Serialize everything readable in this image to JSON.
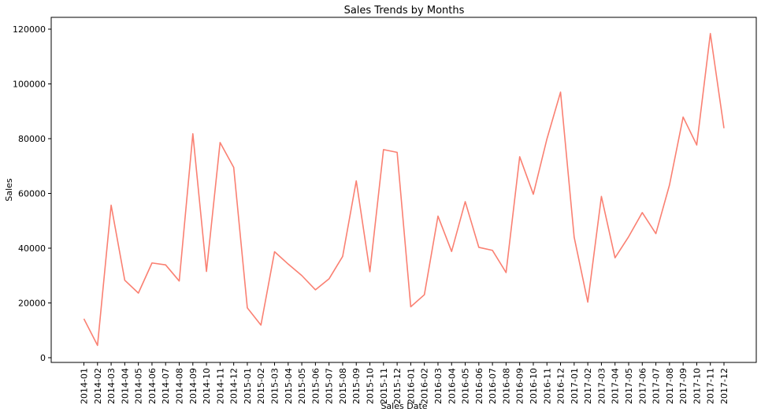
{
  "chart_data": {
    "type": "line",
    "title": "Sales Trends by Months",
    "xlabel": "Sales Date",
    "ylabel": "Sales",
    "ylim": [
      0,
      120000
    ],
    "yticks": [
      0,
      20000,
      40000,
      60000,
      80000,
      100000,
      120000
    ],
    "grid": false,
    "line_color": "#fa8072",
    "categories": [
      "2014-01",
      "2014-02",
      "2014-03",
      "2014-04",
      "2014-05",
      "2014-06",
      "2014-07",
      "2014-08",
      "2014-09",
      "2014-10",
      "2014-11",
      "2014-12",
      "2015-01",
      "2015-02",
      "2015-03",
      "2015-04",
      "2015-05",
      "2015-06",
      "2015-07",
      "2015-08",
      "2015-09",
      "2015-10",
      "2015-11",
      "2015-12",
      "2016-01",
      "2016-02",
      "2016-03",
      "2016-04",
      "2016-05",
      "2016-06",
      "2016-07",
      "2016-08",
      "2016-09",
      "2016-10",
      "2016-11",
      "2016-12",
      "2017-01",
      "2017-02",
      "2017-03",
      "2017-04",
      "2017-05",
      "2017-06",
      "2017-07",
      "2017-08",
      "2017-09",
      "2017-10",
      "2017-11",
      "2017-12"
    ],
    "series": [
      {
        "values": [
          14200,
          4500,
          55700,
          28300,
          23600,
          34600,
          33900,
          28000,
          81800,
          31500,
          78600,
          69500,
          18200,
          11900,
          38700,
          34200,
          30000,
          24800,
          28800,
          37000,
          64600,
          31400,
          76000,
          75000,
          18600,
          23000,
          51700,
          38800,
          57000,
          40300,
          39200,
          31100,
          73400,
          59700,
          79900,
          97000,
          44000,
          20300,
          58900,
          36500,
          44200,
          53000,
          45300,
          63100,
          87900,
          77700,
          118400,
          83800
        ]
      }
    ]
  }
}
